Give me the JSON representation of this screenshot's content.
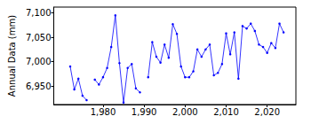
{
  "chart_data": {
    "type": "line",
    "y_label": "Annual Data (mm)",
    "color": "#0000ff",
    "marker": "circle",
    "grid": false,
    "x": [
      1972,
      1973,
      1974,
      1975,
      1976,
      1977,
      1978,
      1979,
      1980,
      1981,
      1982,
      1983,
      1984,
      1985,
      1986,
      1987,
      1988,
      1989,
      1990,
      1991,
      1992,
      1993,
      1994,
      1995,
      1996,
      1997,
      1998,
      1999,
      2000,
      2001,
      2002,
      2003,
      2004,
      2005,
      2006,
      2007,
      2008,
      2009,
      2010,
      2011,
      2012,
      2013,
      2014,
      2015,
      2016,
      2017,
      2018,
      2019,
      2020,
      2021,
      2022,
      2023,
      2024
    ],
    "values": [
      6990,
      6943,
      6965,
      6930,
      6921,
      null,
      6963,
      6953,
      6968,
      6987,
      7030,
      7095,
      6997,
      6916,
      6987,
      6995,
      6945,
      6937,
      null,
      6968,
      7040,
      7010,
      6998,
      7035,
      7008,
      7077,
      7057,
      6990,
      6968,
      6968,
      6980,
      7025,
      7010,
      7025,
      7035,
      6972,
      6977,
      6995,
      7058,
      7015,
      7060,
      6965,
      7073,
      7068,
      7078,
      7063,
      7035,
      7030,
      7018,
      7038,
      7028,
      7078,
      7060
    ],
    "xlim": [
      1968,
      2027
    ],
    "xticks": [
      1980,
      1990,
      2000,
      2010,
      2020
    ],
    "ylim": [
      6912,
      7112
    ],
    "yticks": [
      6950,
      7000,
      7050,
      7100
    ]
  }
}
